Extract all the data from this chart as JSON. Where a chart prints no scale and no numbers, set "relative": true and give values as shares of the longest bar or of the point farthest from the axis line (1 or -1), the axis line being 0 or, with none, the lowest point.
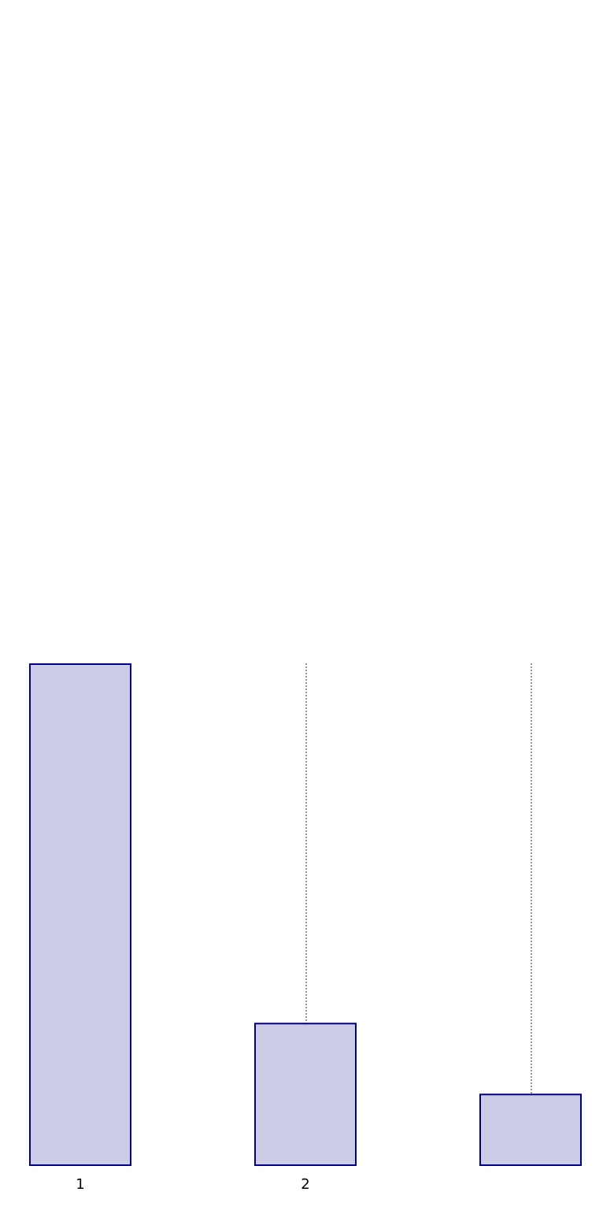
{
  "chart_data": {
    "type": "bar",
    "categories": [
      "1",
      "2",
      null
    ],
    "values": [
      1,
      0.285,
      0.144
    ],
    "relative": true,
    "color": "#ccccE6",
    "grid": "x"
  }
}
